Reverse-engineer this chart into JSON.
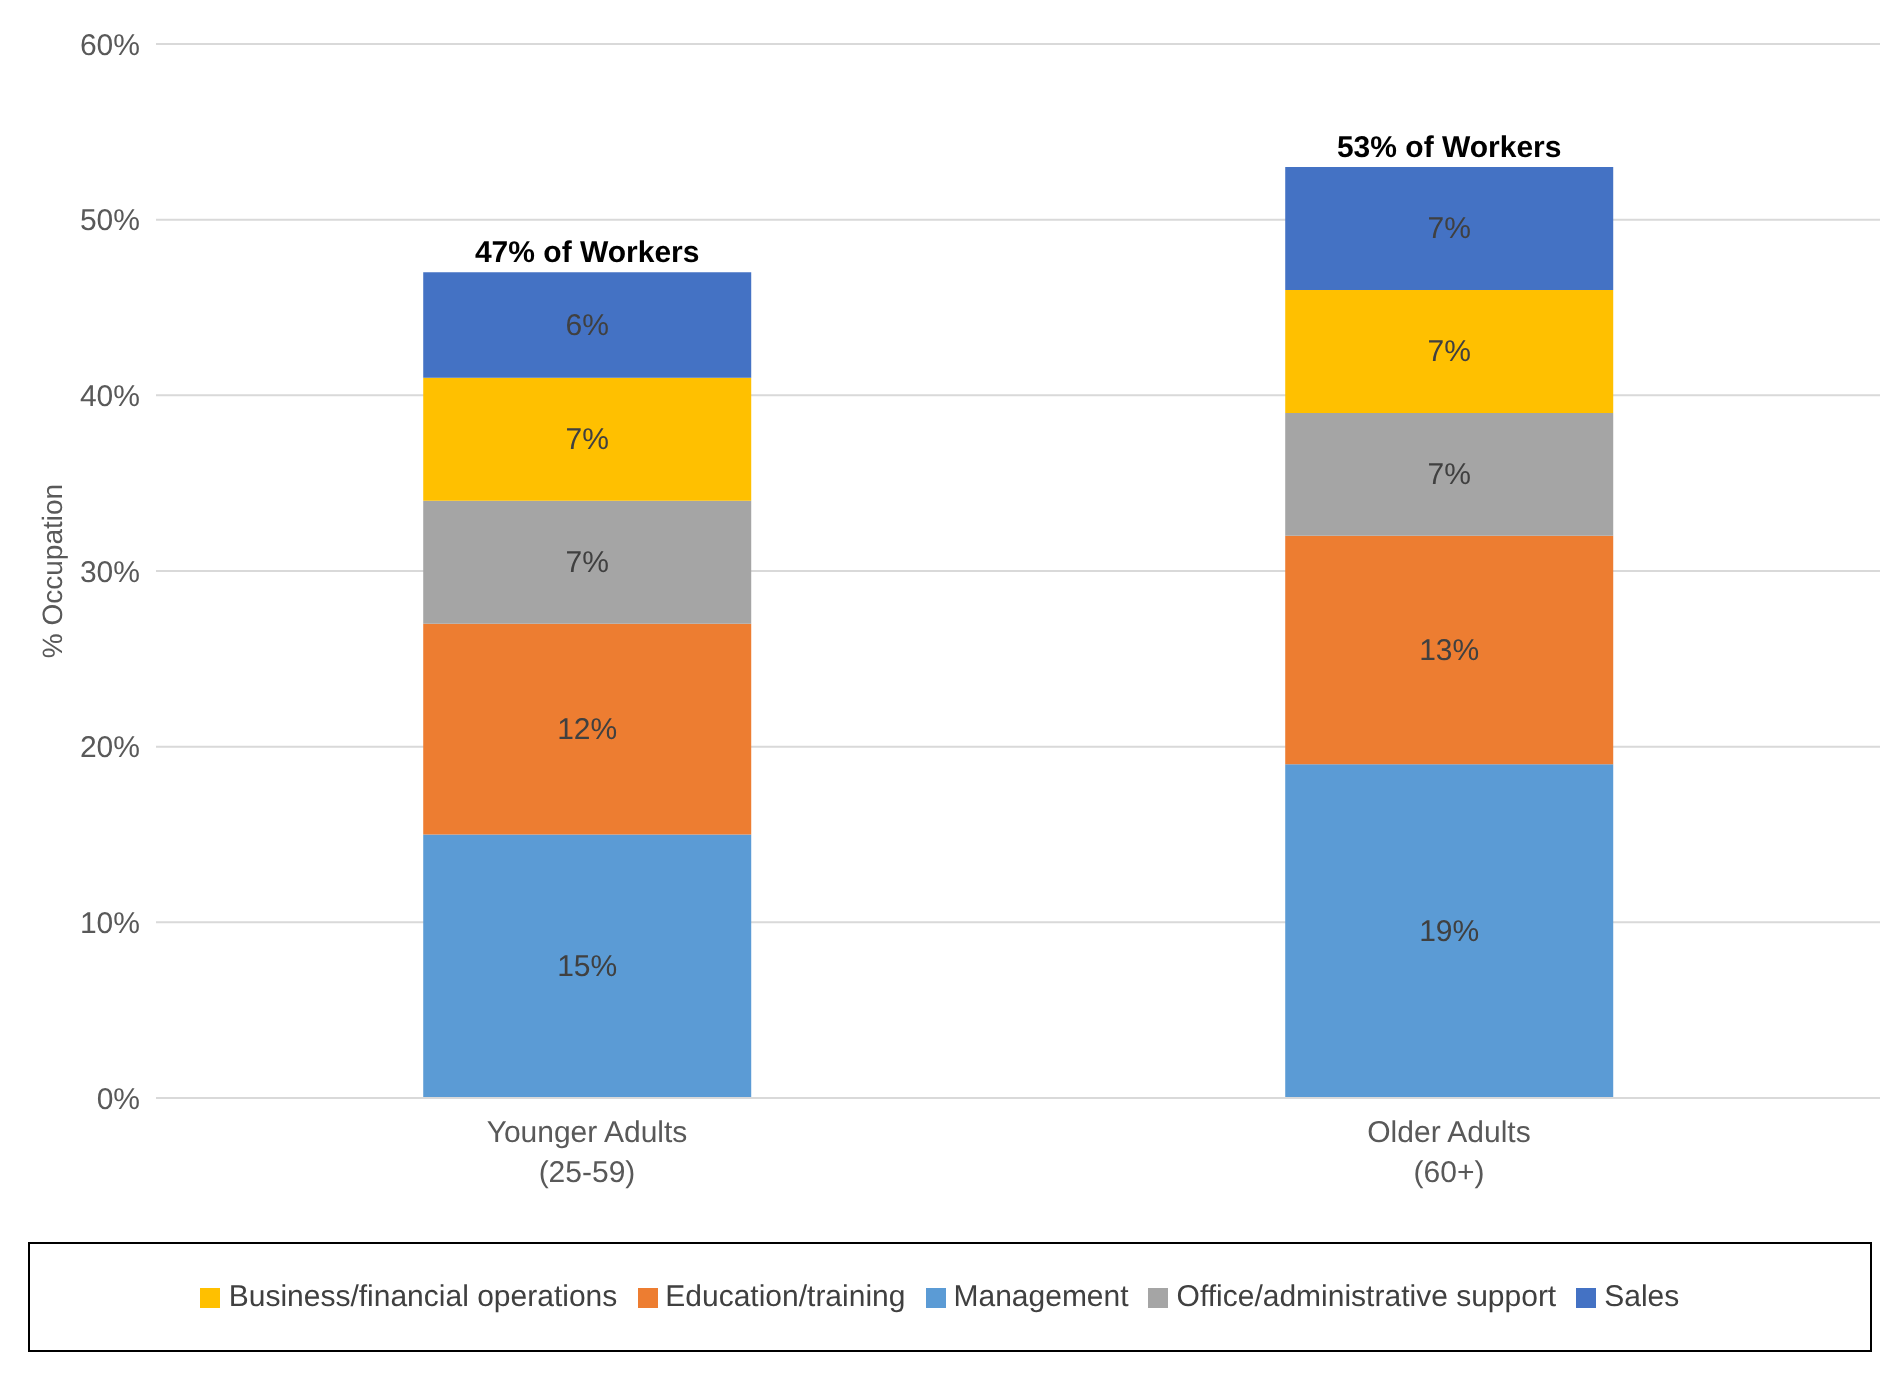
{
  "chart_data": {
    "type": "bar",
    "stacked": true,
    "ylabel": "% Occupation",
    "categories": [
      "Younger Adults\n(25-59)",
      "Older Adults\n(60+)"
    ],
    "series": [
      {
        "name": "Management",
        "color": "#5b9bd5",
        "values": [
          15,
          19
        ],
        "value_labels": [
          "15%",
          "19%"
        ]
      },
      {
        "name": "Education/training",
        "color": "#ed7d31",
        "values": [
          12,
          13
        ],
        "value_labels": [
          "12%",
          "13%"
        ]
      },
      {
        "name": "Office/administrative support",
        "color": "#a5a5a5",
        "values": [
          7,
          7
        ],
        "value_labels": [
          "7%",
          "7%"
        ]
      },
      {
        "name": "Business/financial operations",
        "color": "#ffc000",
        "values": [
          7,
          7
        ],
        "value_labels": [
          "7%",
          "7%"
        ]
      },
      {
        "name": "Sales",
        "color": "#4472c4",
        "values": [
          6,
          7
        ],
        "value_labels": [
          "6%",
          "7%"
        ]
      }
    ],
    "totals": [
      "47% of Workers",
      "53% of Workers"
    ],
    "ylim": [
      0,
      60
    ],
    "yticks": [
      {
        "value": 0,
        "label": "0%"
      },
      {
        "value": 10,
        "label": "10%"
      },
      {
        "value": 20,
        "label": "20%"
      },
      {
        "value": 30,
        "label": "30%"
      },
      {
        "value": 40,
        "label": "40%"
      },
      {
        "value": 50,
        "label": "50%"
      },
      {
        "value": 60,
        "label": "60%"
      }
    ],
    "grid": "y",
    "legend": "bottom"
  }
}
